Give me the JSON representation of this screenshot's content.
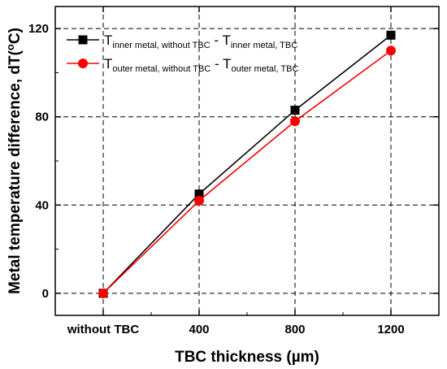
{
  "chart_data": {
    "type": "line",
    "title": "",
    "xlabel": "TBC thickness (µm)",
    "ylabel_main": "Metal temperature difference, dT(",
    "ylabel_sup": "o",
    "ylabel_end": "C)",
    "categories": [
      "without TBC",
      "400",
      "800",
      "1200"
    ],
    "ylim": [
      -10,
      130
    ],
    "yticks": [
      0,
      40,
      80,
      120
    ],
    "ytick_labels": [
      "0",
      "40",
      "80",
      "120"
    ],
    "grid": true,
    "legend_position": "top-left",
    "series": [
      {
        "name_a": "T",
        "sub_a": "inner metal, without TBC",
        "dash": " - ",
        "name_b": "T",
        "sub_b": "inner metal, TBC",
        "values": [
          0,
          45,
          83,
          117
        ],
        "color": "#000000",
        "marker": "square"
      },
      {
        "name_a": "T",
        "sub_a": "outer metal, without TBC",
        "dash": " - ",
        "name_b": "T",
        "sub_b": "outer metal, TBC",
        "values": [
          0,
          42,
          78,
          110
        ],
        "color": "#ff0000",
        "marker": "circle"
      }
    ]
  }
}
